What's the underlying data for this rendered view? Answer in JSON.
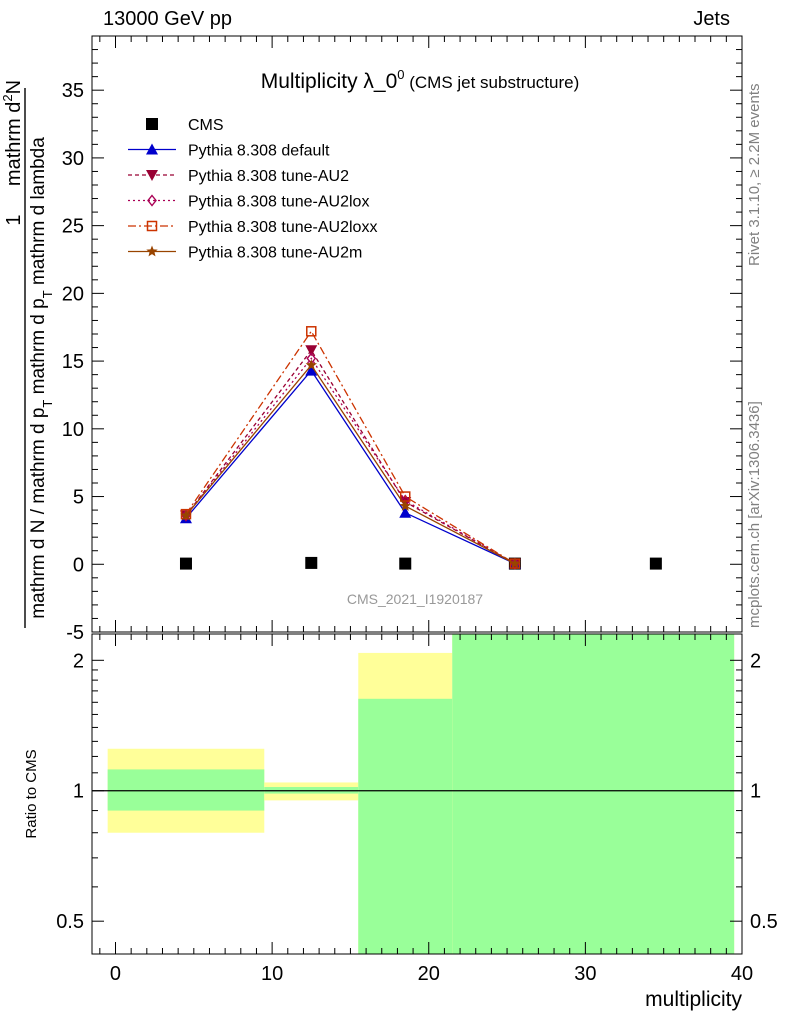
{
  "header": {
    "left": "13000 GeV pp",
    "right": "Jets"
  },
  "side_labels": {
    "version": "Rivet 3.1.10, ≥ 2.2M events",
    "source": "mcplots.cern.ch [arXiv:1306.3436]"
  },
  "chart_data": [
    {
      "type": "line",
      "title": "Multiplicity λ_0",
      "title_superscript": "0",
      "subtitle": "(CMS jet substructure)",
      "watermark": "CMS_2021_I1920187",
      "ylabel": {
        "prefix": "1",
        "fraction_numerator": "mathrm d",
        "fraction_numerator_superscript": "2",
        "fraction_numerator_after": "N",
        "denominator_main": "mathrm d N / mathrm d p",
        "denominator_subscript_1": "T",
        "denominator_middle": " mathrm d p",
        "denominator_subscript_2": "T",
        "denominator_end": " mathrm d lambda"
      },
      "xlim": [
        -1.5,
        40
      ],
      "ylim": [
        -5,
        39
      ],
      "yticks": [
        -5,
        0,
        5,
        10,
        15,
        20,
        25,
        30,
        35
      ],
      "series": [
        {
          "name": "CMS",
          "color": "#000000",
          "marker": "square",
          "dash": "none",
          "x": [
            4.5,
            12.5,
            18.5,
            25.5,
            34.5
          ],
          "y": [
            0.05,
            0.1,
            0.05,
            0.05,
            0.05
          ]
        },
        {
          "name": "Pythia 8.308 default",
          "color": "#0000cc",
          "marker": "triangle-up",
          "dash": "none",
          "x": [
            4.5,
            12.5,
            18.5,
            25.5
          ],
          "y": [
            3.4,
            14.3,
            3.8,
            0.05
          ]
        },
        {
          "name": "Pythia 8.308 tune-AU2",
          "color": "#990033",
          "marker": "triangle-down",
          "dash": "4,3",
          "x": [
            4.5,
            12.5,
            18.5,
            25.5
          ],
          "y": [
            3.6,
            15.8,
            4.6,
            0.05
          ]
        },
        {
          "name": "Pythia 8.308 tune-AU2lox",
          "color": "#aa0055",
          "marker": "diamond-open",
          "dash": "2,3",
          "x": [
            4.5,
            12.5,
            18.5,
            25.5
          ],
          "y": [
            3.6,
            15.2,
            4.7,
            0.05
          ]
        },
        {
          "name": "Pythia 8.308 tune-AU2loxx",
          "color": "#cc3300",
          "marker": "square-open",
          "dash": "8,3,2,3",
          "x": [
            4.5,
            12.5,
            18.5,
            25.5
          ],
          "y": [
            3.7,
            17.2,
            5.0,
            0.05
          ]
        },
        {
          "name": "Pythia 8.308 tune-AU2m",
          "color": "#994400",
          "marker": "star",
          "dash": "none",
          "x": [
            4.5,
            12.5,
            18.5,
            25.5
          ],
          "y": [
            3.6,
            14.7,
            4.3,
            0.05
          ]
        }
      ],
      "legend": "top-left"
    },
    {
      "type": "area",
      "ylabel": "Ratio to CMS",
      "xlabel": "multiplicity",
      "scale": "log",
      "ylim": [
        0.42,
        2.3
      ],
      "yticks": [
        0.5,
        1,
        2
      ],
      "xticks": [
        0,
        10,
        20,
        30,
        40
      ],
      "reference_line": 1,
      "bands": [
        {
          "xmin": -0.5,
          "xmax": 9.5,
          "green": [
            0.9,
            1.12
          ],
          "yellow": [
            0.8,
            1.25
          ]
        },
        {
          "xmin": 9.5,
          "xmax": 15.5,
          "green": [
            0.985,
            1.02
          ],
          "yellow": [
            0.95,
            1.045
          ]
        },
        {
          "xmin": 15.5,
          "xmax": 21.5,
          "green": [
            0.42,
            1.63
          ],
          "yellow": [
            0.4,
            2.08
          ]
        },
        {
          "xmin": 21.5,
          "xmax": 39.5,
          "green": [
            0.4,
            2.4
          ],
          "yellow": [
            0.4,
            2.4
          ]
        }
      ],
      "colors": {
        "green": "#99ff99",
        "yellow": "#ffff99"
      }
    }
  ]
}
